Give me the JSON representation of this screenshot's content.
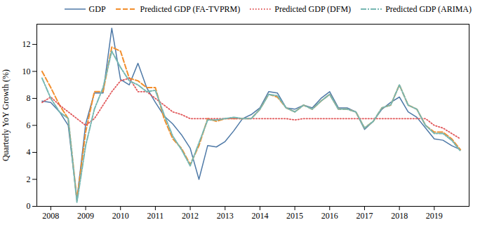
{
  "chart_data": {
    "type": "line",
    "ylabel": "Quarterly YoY Growth (%)",
    "x": [
      2007.75,
      2008,
      2008.25,
      2008.5,
      2008.75,
      2009,
      2009.25,
      2009.5,
      2009.75,
      2010,
      2010.25,
      2010.5,
      2010.75,
      2011,
      2011.25,
      2011.5,
      2011.75,
      2012,
      2012.25,
      2012.5,
      2012.75,
      2013,
      2013.25,
      2013.5,
      2013.75,
      2014,
      2014.25,
      2014.5,
      2014.75,
      2015,
      2015.25,
      2015.5,
      2015.75,
      2016,
      2016.25,
      2016.5,
      2016.75,
      2017,
      2017.25,
      2017.5,
      2017.75,
      2018,
      2018.25,
      2018.5,
      2018.75,
      2019,
      2019.25,
      2019.5,
      2019.75
    ],
    "series": [
      {
        "name": "GDP",
        "line_style": "solid",
        "values": [
          7.8,
          7.7,
          7.0,
          6.0,
          0.5,
          6.1,
          8.4,
          8.4,
          13.2,
          9.4,
          9.0,
          10.6,
          8.8,
          7.7,
          6.7,
          6.1,
          5.3,
          4.3,
          2.0,
          4.5,
          4.4,
          4.8,
          5.6,
          6.5,
          6.8,
          7.3,
          8.5,
          8.4,
          7.3,
          7.2,
          7.5,
          7.3,
          8.0,
          8.5,
          7.3,
          7.3,
          7.0,
          5.7,
          6.3,
          7.2,
          7.7,
          8.1,
          7.0,
          6.6,
          5.8,
          5.0,
          4.9,
          4.5,
          4.2
        ]
      },
      {
        "name": "Predicted GDP (FA-TVPRM)",
        "line_style": "dashed",
        "values": [
          10.0,
          8.8,
          7.5,
          6.5,
          0.5,
          5.5,
          8.5,
          8.5,
          11.8,
          11.5,
          9.5,
          9.3,
          8.8,
          8.8,
          6.5,
          5.0,
          4.3,
          3.1,
          4.5,
          6.5,
          6.3,
          6.5,
          6.5,
          6.5,
          6.5,
          7.2,
          8.3,
          8.1,
          7.3,
          7.0,
          7.5,
          7.2,
          7.8,
          8.3,
          7.2,
          7.2,
          7.0,
          5.8,
          6.3,
          7.3,
          7.5,
          9.0,
          7.5,
          7.2,
          6.0,
          5.5,
          5.5,
          5.0,
          4.2
        ]
      },
      {
        "name": "Predicted GDP (DFM)",
        "line_style": "dotted",
        "values": [
          7.7,
          8.1,
          7.5,
          7.0,
          6.5,
          6.0,
          6.5,
          7.5,
          8.5,
          9.3,
          9.5,
          8.5,
          8.5,
          8.0,
          7.5,
          7.0,
          6.8,
          6.5,
          6.5,
          6.5,
          6.5,
          6.5,
          6.5,
          6.5,
          6.5,
          6.5,
          6.5,
          6.5,
          6.5,
          6.4,
          6.5,
          6.5,
          6.5,
          6.5,
          6.5,
          6.5,
          6.5,
          6.5,
          6.5,
          6.5,
          6.5,
          6.5,
          6.5,
          6.5,
          6.5,
          6.0,
          5.8,
          5.4,
          5.0
        ]
      },
      {
        "name": "Predicted GDP (ARIMA)",
        "line_style": "dashdot",
        "values": [
          9.5,
          8.0,
          7.0,
          6.5,
          0.3,
          4.5,
          7.2,
          8.8,
          11.5,
          10.3,
          9.3,
          9.0,
          8.5,
          8.6,
          6.8,
          5.2,
          4.2,
          3.0,
          4.7,
          6.4,
          6.4,
          6.5,
          6.6,
          6.5,
          6.5,
          7.2,
          8.3,
          8.2,
          7.3,
          7.0,
          7.5,
          7.2,
          7.8,
          8.3,
          7.2,
          7.2,
          7.0,
          5.8,
          6.3,
          7.3,
          7.5,
          9.0,
          7.5,
          7.2,
          6.0,
          5.4,
          5.4,
          4.9,
          4.1
        ]
      }
    ],
    "xlim": [
      2007.6,
      2020.0
    ],
    "xticks": [
      2008,
      2009,
      2010,
      2011,
      2012,
      2013,
      2014,
      2015,
      2016,
      2017,
      2018,
      2019
    ],
    "ylim": [
      0,
      13.5
    ],
    "yticks": [
      0,
      2,
      4,
      6,
      8,
      10,
      12
    ],
    "grid": false,
    "legend": "upper right"
  }
}
